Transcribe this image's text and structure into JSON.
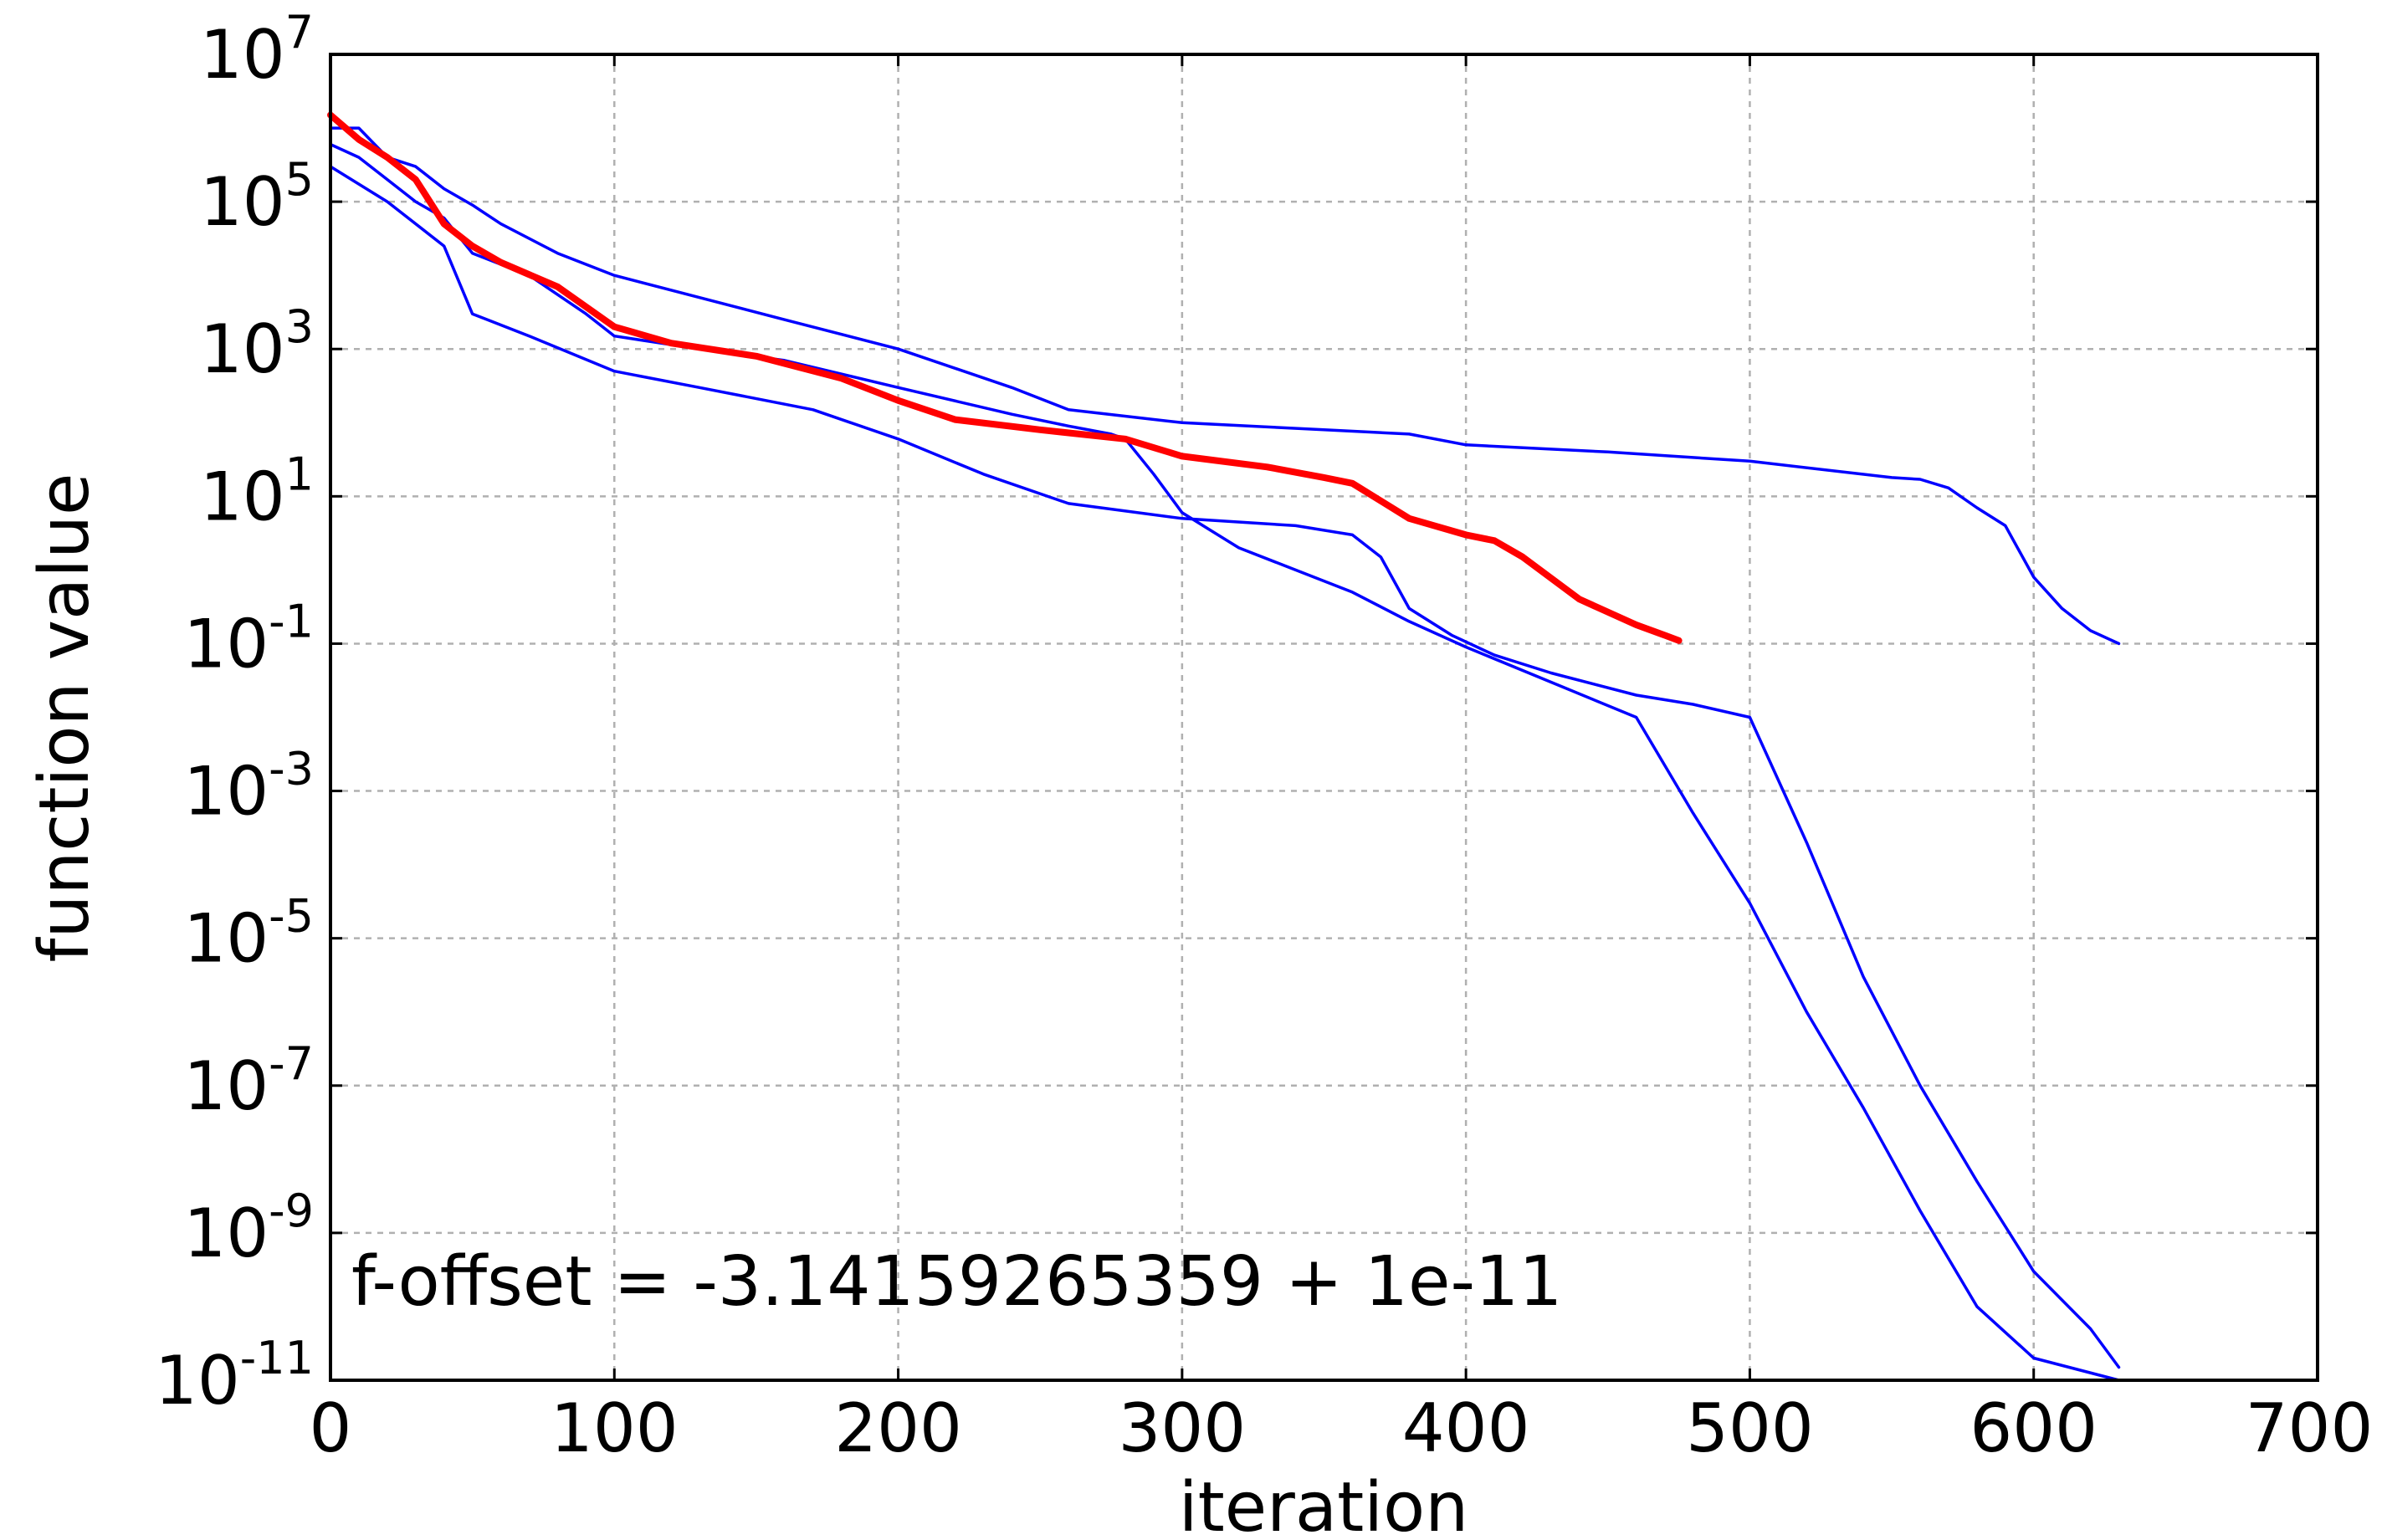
{
  "chart_data": {
    "type": "line",
    "xlabel": "iteration",
    "ylabel": "function value",
    "xlim": [
      0,
      700
    ],
    "ylim": [
      1e-11,
      10000000.0
    ],
    "yscale": "log",
    "grid": true,
    "x_ticks": [
      "0",
      "100",
      "200",
      "300",
      "400",
      "500",
      "600",
      "700"
    ],
    "y_ticks": [
      {
        "base": "10",
        "exp": "7"
      },
      {
        "base": "10",
        "exp": "5"
      },
      {
        "base": "10",
        "exp": "3"
      },
      {
        "base": "10",
        "exp": "1"
      },
      {
        "base": "10",
        "exp": "-1"
      },
      {
        "base": "10",
        "exp": "-3"
      },
      {
        "base": "10",
        "exp": "-5"
      },
      {
        "base": "10",
        "exp": "-7"
      },
      {
        "base": "10",
        "exp": "-9"
      },
      {
        "base": "10",
        "exp": "-11"
      }
    ],
    "annotation": "f-offset = -3.14159265359 + 1e-11",
    "colors": {
      "blue": "#0000ff",
      "red": "#ff0000",
      "grid": "#b0b0b0"
    },
    "series": [
      {
        "color": "#0000ff",
        "points": [
          [
            0,
            1000000.0
          ],
          [
            10,
            1000000.0
          ],
          [
            20,
            400000.0
          ],
          [
            30,
            300000.0
          ],
          [
            40,
            150000.0
          ],
          [
            50,
            90000.0
          ],
          [
            60,
            50000.0
          ],
          [
            80,
            20000.0
          ],
          [
            100,
            10000.0
          ],
          [
            130,
            5000.0
          ],
          [
            160,
            2500.0
          ],
          [
            200,
            1000.0
          ],
          [
            240,
            300
          ],
          [
            260,
            150
          ],
          [
            300,
            100
          ],
          [
            350,
            80
          ],
          [
            380,
            70
          ],
          [
            400,
            50
          ],
          [
            450,
            40
          ],
          [
            500,
            30
          ],
          [
            550,
            18
          ],
          [
            560,
            17
          ],
          [
            570,
            13
          ],
          [
            580,
            7
          ],
          [
            590,
            4
          ],
          [
            600,
            0.8
          ],
          [
            610,
            0.3
          ],
          [
            620,
            0.15
          ],
          [
            630,
            0.1
          ]
        ]
      },
      {
        "color": "#0000ff",
        "points": [
          [
            0,
            600000.0
          ],
          [
            10,
            400000.0
          ],
          [
            20,
            200000.0
          ],
          [
            30,
            100000.0
          ],
          [
            40,
            60000.0
          ],
          [
            50,
            20000.0
          ],
          [
            70,
            10000.0
          ],
          [
            90,
            3000.0
          ],
          [
            100,
            1500.0
          ],
          [
            130,
            1000.0
          ],
          [
            160,
            700
          ],
          [
            200,
            300
          ],
          [
            240,
            130
          ],
          [
            260,
            90
          ],
          [
            275,
            70
          ],
          [
            280,
            60
          ],
          [
            290,
            20
          ],
          [
            300,
            6
          ],
          [
            320,
            2
          ],
          [
            340,
            1
          ],
          [
            360,
            0.5
          ],
          [
            380,
            0.2
          ],
          [
            400,
            0.09
          ],
          [
            430,
            0.03
          ],
          [
            460,
            0.01
          ],
          [
            480,
            0.0005
          ],
          [
            500,
            3e-05
          ],
          [
            520,
            1e-06
          ],
          [
            540,
            5e-08
          ],
          [
            560,
            2e-09
          ],
          [
            580,
            1e-10
          ],
          [
            600,
            2e-11
          ],
          [
            630,
            1e-11
          ]
        ]
      },
      {
        "color": "#0000ff",
        "points": [
          [
            0,
            300000.0
          ],
          [
            20,
            100000.0
          ],
          [
            40,
            25000.0
          ],
          [
            50,
            3000.0
          ],
          [
            70,
            1500.0
          ],
          [
            100,
            500
          ],
          [
            130,
            300
          ],
          [
            170,
            150
          ],
          [
            200,
            60
          ],
          [
            230,
            20
          ],
          [
            260,
            8
          ],
          [
            300,
            5
          ],
          [
            340,
            4
          ],
          [
            360,
            3
          ],
          [
            370,
            1.5
          ],
          [
            380,
            0.3
          ],
          [
            395,
            0.13
          ],
          [
            410,
            0.07
          ],
          [
            430,
            0.04
          ],
          [
            460,
            0.02
          ],
          [
            480,
            0.015
          ],
          [
            500,
            0.01
          ],
          [
            520,
            0.0002
          ],
          [
            540,
            3e-06
          ],
          [
            560,
            1e-07
          ],
          [
            580,
            5e-09
          ],
          [
            600,
            3e-10
          ],
          [
            620,
            5e-11
          ],
          [
            630,
            1.5e-11
          ]
        ]
      },
      {
        "color": "#ff0000",
        "points": [
          [
            0,
            1500000.0
          ],
          [
            10,
            700000.0
          ],
          [
            20,
            400000.0
          ],
          [
            30,
            200000.0
          ],
          [
            40,
            50000.0
          ],
          [
            50,
            25000.0
          ],
          [
            60,
            15000.0
          ],
          [
            80,
            7000.0
          ],
          [
            100,
            2000.0
          ],
          [
            120,
            1200.0
          ],
          [
            150,
            800
          ],
          [
            180,
            400
          ],
          [
            200,
            200
          ],
          [
            220,
            110
          ],
          [
            250,
            80
          ],
          [
            280,
            60
          ],
          [
            300,
            35
          ],
          [
            330,
            25
          ],
          [
            350,
            18
          ],
          [
            360,
            15
          ],
          [
            380,
            5
          ],
          [
            400,
            3
          ],
          [
            410,
            2.5
          ],
          [
            420,
            1.5
          ],
          [
            440,
            0.4
          ],
          [
            460,
            0.18
          ],
          [
            470,
            0.13
          ],
          [
            475,
            0.11
          ]
        ]
      }
    ]
  }
}
